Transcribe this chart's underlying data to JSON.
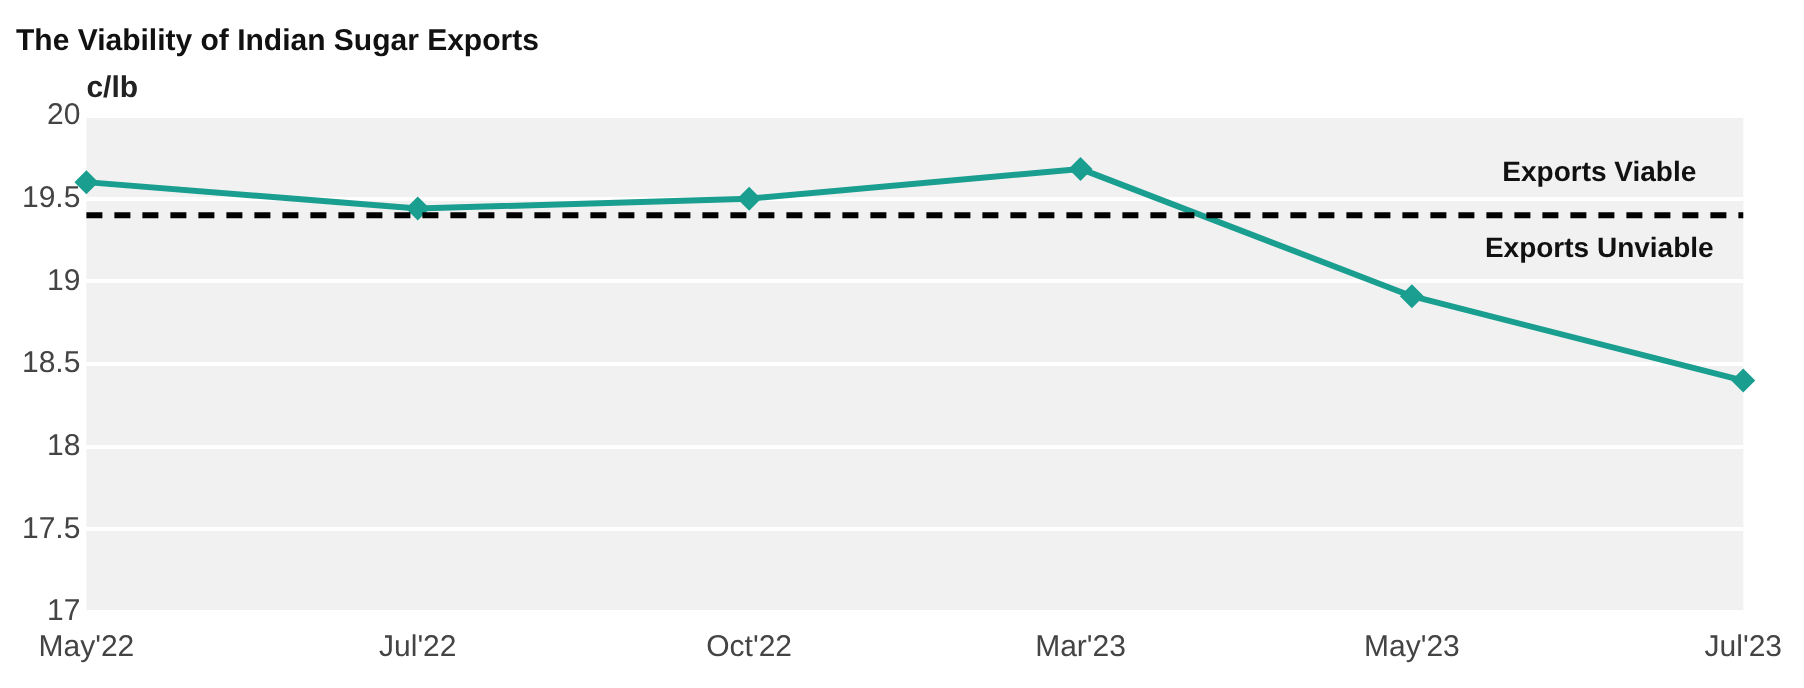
{
  "chart_data": {
    "type": "line",
    "title": "The Viability of Indian Sugar Exports",
    "ylabel": "c/lb",
    "categories": [
      "May'22",
      "Jul'22",
      "Oct'22",
      "Mar'23",
      "May'23",
      "Jul'23"
    ],
    "series": [
      {
        "color": "#1a9e8f",
        "values": [
          19.6,
          19.44,
          19.5,
          19.68,
          18.91,
          18.4
        ]
      }
    ],
    "ylim": [
      17,
      20
    ],
    "yticks": [
      17,
      17.5,
      18,
      18.5,
      19,
      19.5,
      20
    ],
    "ref_lines": [
      {
        "axis": "y",
        "value": 19.4,
        "color": "#000000",
        "line_style": "dashed"
      }
    ],
    "annotations": [
      "Exports Viable",
      "Exports Unviable"
    ],
    "grid": "y",
    "legend": false,
    "marker": "diamond",
    "line_style": "solid"
  }
}
